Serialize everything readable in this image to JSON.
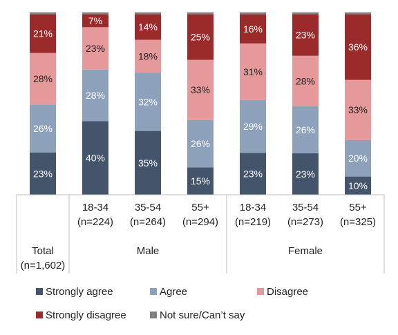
{
  "chart_data": {
    "type": "bar",
    "stacked": true,
    "percent_stacked": true,
    "value_suffix": "%",
    "categories": [
      {
        "group": "",
        "label_lines": [
          "Total",
          "(n=1,602)"
        ]
      },
      {
        "group": "Male",
        "label_lines": [
          "18-34",
          "(n=224)"
        ]
      },
      {
        "group": "Male",
        "label_lines": [
          "35-54",
          "(n=264)"
        ]
      },
      {
        "group": "Male",
        "label_lines": [
          "55+",
          "(n=294)"
        ]
      },
      {
        "group": "Female",
        "label_lines": [
          "18-34",
          "(n=219)"
        ]
      },
      {
        "group": "Female",
        "label_lines": [
          "35-54",
          "(n=273)"
        ]
      },
      {
        "group": "Female",
        "label_lines": [
          "55+",
          "(n=325)"
        ]
      }
    ],
    "groups": [
      {
        "label": "Male",
        "start": 1,
        "end": 3
      },
      {
        "label": "Female",
        "start": 4,
        "end": 6
      }
    ],
    "series": [
      {
        "name": "Strongly agree",
        "color": "#44546a",
        "values": [
          23,
          40,
          35,
          15,
          23,
          23,
          10
        ],
        "label_color": "#ffffff"
      },
      {
        "name": "Agree",
        "color": "#8da1bb",
        "values": [
          26,
          28,
          32,
          26,
          29,
          26,
          20
        ],
        "label_color": "#ffffff"
      },
      {
        "name": "Disagree",
        "color": "#e5999b",
        "values": [
          28,
          23,
          18,
          33,
          31,
          28,
          33
        ],
        "label_color": "#222222"
      },
      {
        "name": "Strongly disagree",
        "color": "#9b2a2a",
        "values": [
          21,
          7,
          14,
          25,
          16,
          23,
          36
        ],
        "label_color": "#ffffff"
      },
      {
        "name": "Not sure/Can’t say",
        "color": "#7f7f7f",
        "values": [
          1,
          1,
          1,
          1,
          1,
          1,
          1
        ],
        "label_color": "#ffffff",
        "show_labels": false
      }
    ],
    "ylim": [
      0,
      100
    ],
    "legend": {
      "position": "bottom",
      "columns": 3
    },
    "grid": false
  }
}
